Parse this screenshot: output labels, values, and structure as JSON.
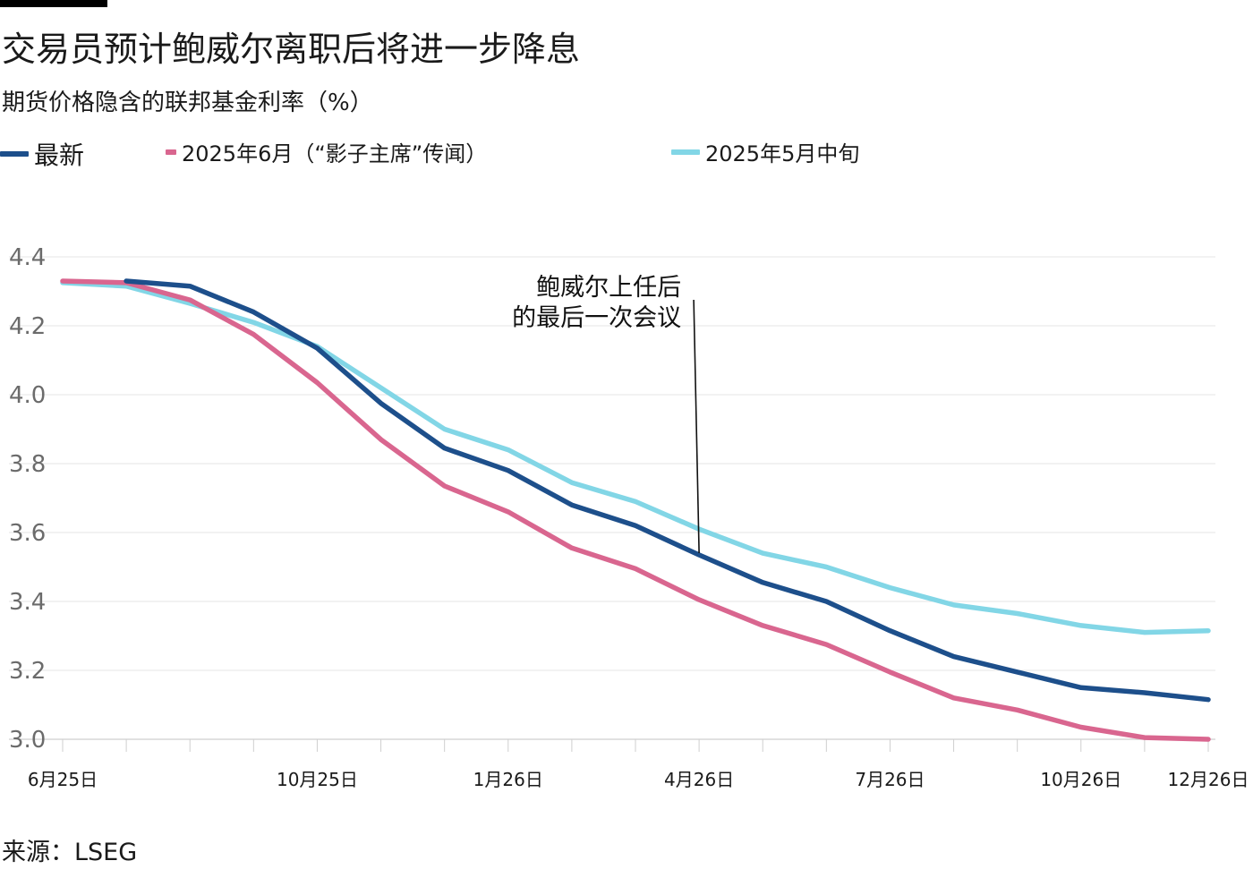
{
  "title": "交易员预计鲍威尔离职后将进一步降息",
  "subtitle": "期货价格隐含的联邦基金利率（%）",
  "legend": [
    {
      "label": "最新",
      "color": "#1d4f8b"
    },
    {
      "label": "2025年6月（“影子主席”传闻）",
      "color": "#d9668f"
    },
    {
      "label": "2025年5月中旬",
      "color": "#82d6e6"
    }
  ],
  "source": "来源：LSEG",
  "chart_data": {
    "type": "line",
    "title": "交易员预计鲍威尔离职后将进一步降息",
    "subtitle": "期货价格隐含的联邦基金利率（%）",
    "ylim": [
      3.0,
      4.4
    ],
    "yticks": [
      "4.4",
      "4.2",
      "4.0",
      "3.8",
      "3.6",
      "3.4",
      "3.2",
      "3.0"
    ],
    "x_tick_labels": [
      {
        "label": "6月25日",
        "index": 0
      },
      {
        "label": "10月25日",
        "index": 4
      },
      {
        "label": "1月26日",
        "index": 7
      },
      {
        "label": "4月26日",
        "index": 10
      },
      {
        "label": "7月26日",
        "index": 13
      },
      {
        "label": "10月26日",
        "index": 16
      },
      {
        "label": "12月26日",
        "index": 18
      }
    ],
    "x_count": 19,
    "grid": true,
    "legend_position": "top",
    "series": [
      {
        "name": "最新",
        "color": "#1d4f8b",
        "start_index": 1,
        "values": [
          4.33,
          4.315,
          4.24,
          4.135,
          3.975,
          3.845,
          3.78,
          3.68,
          3.62,
          3.535,
          3.455,
          3.4,
          3.315,
          3.24,
          3.195,
          3.15,
          3.135,
          3.115
        ]
      },
      {
        "name": "2025年6月（“影子主席”传闻）",
        "color": "#d9668f",
        "start_index": 0,
        "values": [
          4.33,
          4.325,
          4.275,
          4.175,
          4.035,
          3.87,
          3.735,
          3.66,
          3.555,
          3.495,
          3.405,
          3.33,
          3.275,
          3.195,
          3.12,
          3.085,
          3.035,
          3.005,
          3.0
        ]
      },
      {
        "name": "2025年5月中旬",
        "color": "#82d6e6",
        "start_index": 0,
        "values": [
          4.325,
          4.315,
          4.265,
          4.21,
          4.14,
          4.02,
          3.9,
          3.84,
          3.745,
          3.69,
          3.61,
          3.54,
          3.5,
          3.44,
          3.39,
          3.365,
          3.33,
          3.31,
          3.315
        ]
      }
    ],
    "annotations": [
      {
        "lines": [
          "鲍威尔上任后",
          "的最后一次会议"
        ],
        "index": 10
      }
    ]
  }
}
